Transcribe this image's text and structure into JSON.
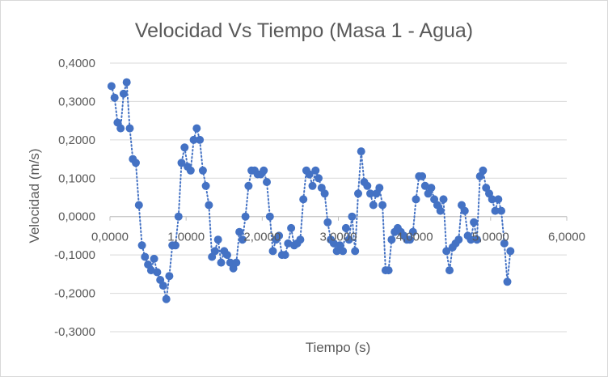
{
  "chart_data": {
    "type": "scatter",
    "title": "Velocidad Vs Tiempo (Masa 1 - Agua)",
    "xlabel": "Tiempo (s)",
    "ylabel": "Velocidad (m/s)",
    "xlim": [
      0,
      6
    ],
    "ylim": [
      -0.3,
      0.4
    ],
    "x_ticks": [
      "0,0000",
      "1,0000",
      "2,0000",
      "3,0000",
      "4,0000",
      "5,0000",
      "6,0000"
    ],
    "y_ticks": [
      "-0,3000",
      "-0,2000",
      "-0,1000",
      "0,0000",
      "0,1000",
      "0,2000",
      "0,3000",
      "0,4000"
    ],
    "grid": "horizontal",
    "series_color": "#4472c4",
    "trendline": "dotted",
    "series": [
      {
        "x": [
          0.02,
          0.06,
          0.1,
          0.14,
          0.18,
          0.22,
          0.26,
          0.3,
          0.34,
          0.38,
          0.42,
          0.46,
          0.5,
          0.54,
          0.58,
          0.62,
          0.66,
          0.7,
          0.74,
          0.78,
          0.82,
          0.86,
          0.9,
          0.94,
          0.98,
          1.02,
          1.06,
          1.1,
          1.14,
          1.18,
          1.22,
          1.26,
          1.3,
          1.34,
          1.38,
          1.42,
          1.46,
          1.5,
          1.54,
          1.58,
          1.62,
          1.66,
          1.7,
          1.74,
          1.78,
          1.82,
          1.86,
          1.9,
          1.94,
          1.98,
          2.02,
          2.06,
          2.1,
          2.14,
          2.18,
          2.22,
          2.26,
          2.3,
          2.34,
          2.38,
          2.42,
          2.46,
          2.5,
          2.54,
          2.58,
          2.62,
          2.66,
          2.7,
          2.74,
          2.78,
          2.82,
          2.86,
          2.9,
          2.94,
          2.98,
          3.02,
          3.06,
          3.1,
          3.14,
          3.18,
          3.22,
          3.26,
          3.3,
          3.34,
          3.38,
          3.42,
          3.46,
          3.5,
          3.54,
          3.58,
          3.62,
          3.66,
          3.7,
          3.74,
          3.78,
          3.82,
          3.86,
          3.9,
          3.94,
          3.98,
          4.02,
          4.06,
          4.1,
          4.14,
          4.18,
          4.22,
          4.26,
          4.3,
          4.34,
          4.38,
          4.42,
          4.46,
          4.5,
          4.54,
          4.58,
          4.62,
          4.66,
          4.7,
          4.74,
          4.78,
          4.82,
          4.86,
          4.9,
          4.94,
          4.98,
          5.02,
          5.06,
          5.1,
          5.14,
          5.18,
          5.22,
          5.26
        ],
        "y": [
          0.34,
          0.31,
          0.245,
          0.23,
          0.32,
          0.35,
          0.23,
          0.15,
          0.14,
          0.03,
          -0.075,
          -0.105,
          -0.125,
          -0.14,
          -0.11,
          -0.145,
          -0.165,
          -0.18,
          -0.215,
          -0.155,
          -0.075,
          -0.075,
          0.0,
          0.14,
          0.18,
          0.13,
          0.12,
          0.2,
          0.23,
          0.2,
          0.12,
          0.08,
          0.03,
          -0.105,
          -0.09,
          -0.06,
          -0.12,
          -0.09,
          -0.1,
          -0.12,
          -0.135,
          -0.12,
          -0.04,
          -0.06,
          0.0,
          0.08,
          0.12,
          0.12,
          0.11,
          0.11,
          0.12,
          0.09,
          0.0,
          -0.09,
          -0.06,
          -0.05,
          -0.1,
          -0.1,
          -0.07,
          -0.03,
          -0.075,
          -0.07,
          -0.06,
          0.045,
          0.12,
          0.11,
          0.08,
          0.12,
          0.1,
          0.075,
          0.06,
          -0.015,
          -0.06,
          -0.07,
          -0.09,
          -0.075,
          -0.09,
          -0.03,
          -0.06,
          0.0,
          -0.09,
          0.06,
          0.17,
          0.09,
          0.08,
          0.06,
          0.03,
          0.06,
          0.075,
          0.03,
          -0.14,
          -0.14,
          -0.06,
          -0.04,
          -0.03,
          -0.04,
          -0.05,
          -0.06,
          -0.06,
          -0.04,
          0.045,
          0.105,
          0.105,
          0.08,
          0.06,
          0.075,
          0.045,
          0.03,
          0.015,
          0.045,
          -0.09,
          -0.14,
          -0.08,
          -0.07,
          -0.06,
          0.03,
          0.015,
          -0.05,
          -0.06,
          -0.015,
          -0.06,
          0.105,
          0.12,
          0.075,
          0.06,
          0.045,
          0.015,
          0.045,
          0.015,
          -0.07,
          -0.17,
          -0.09
        ]
      }
    ]
  }
}
